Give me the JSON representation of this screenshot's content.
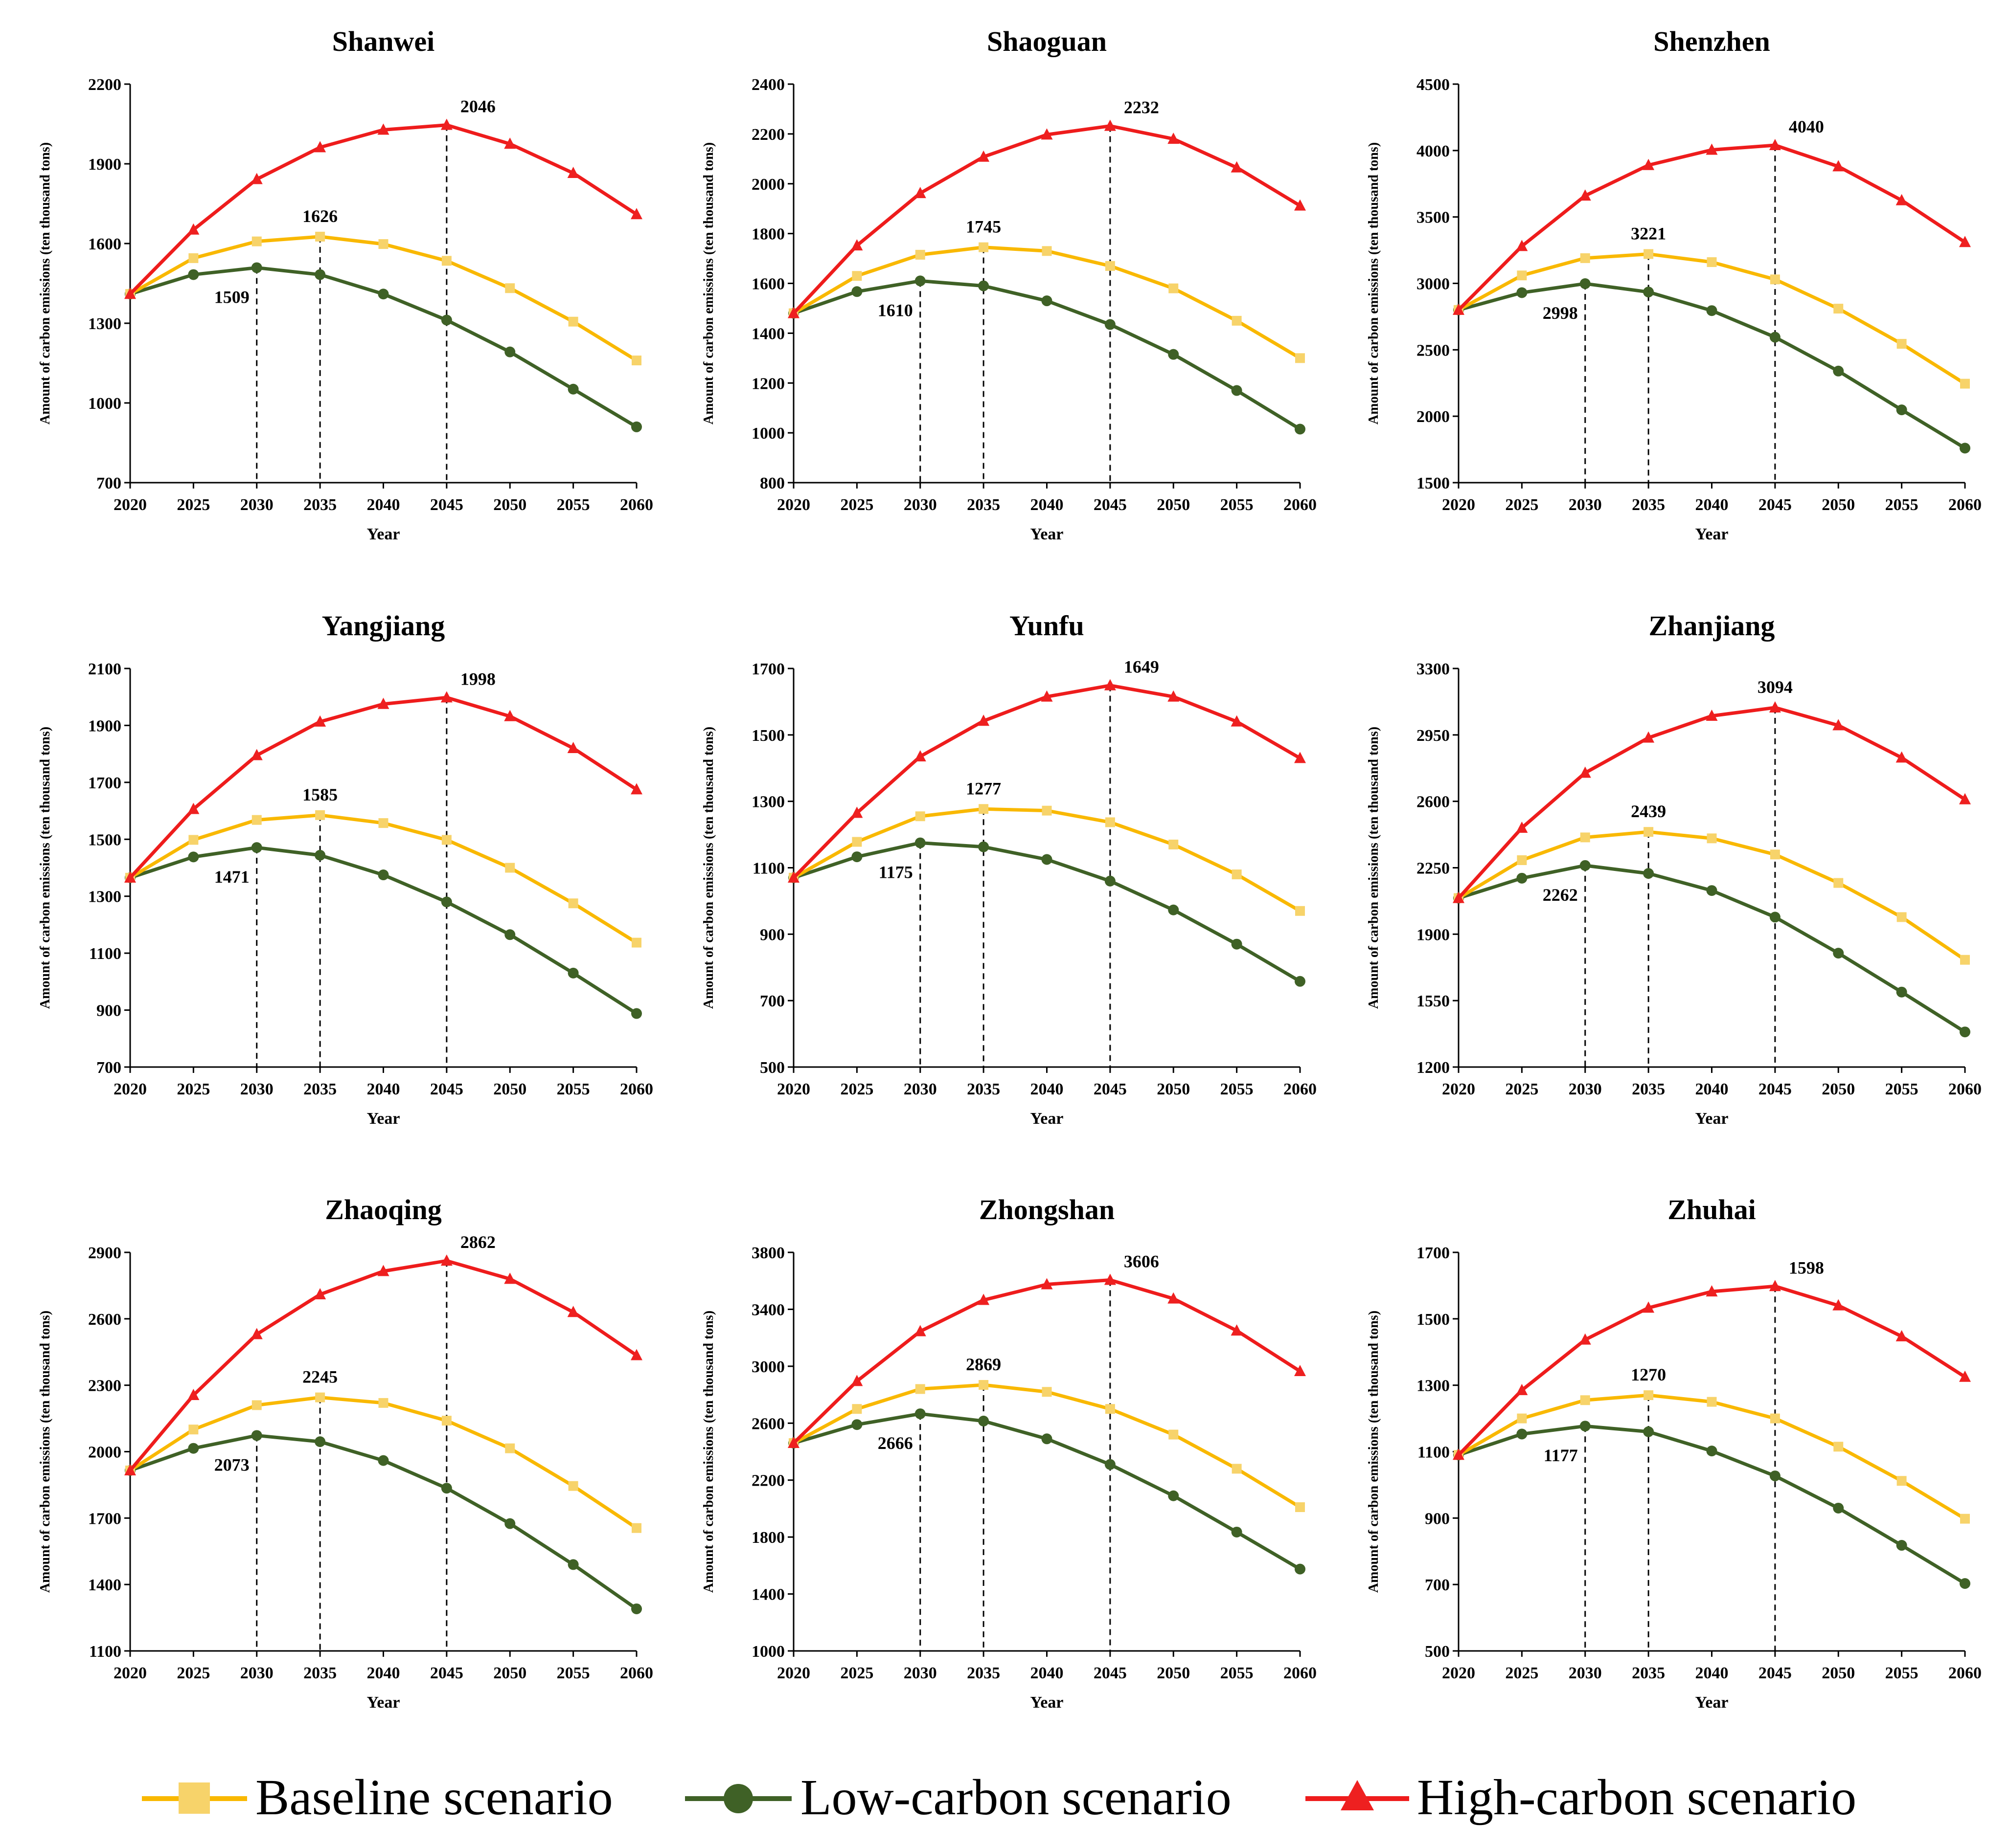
{
  "colors": {
    "baseline": "#f9b800",
    "baseline_marker": "#f7d36a",
    "low": "#3f6126",
    "high": "#ee1c1c",
    "high_marker": "#ee2020"
  },
  "legend": {
    "baseline": "Baseline scenario",
    "low": "Low-carbon scenario",
    "high": "High-carbon scenario"
  },
  "chart_data": [
    {
      "type": "line",
      "title": "Shanwei",
      "xlabel": "Year",
      "ylabel": "Amount of carbon emissions (ten thousand tons)",
      "categories": [
        "2020",
        "2025",
        "2030",
        "2035",
        "2040",
        "2045",
        "2050",
        "2055",
        "2060"
      ],
      "ylim": [
        700,
        2200
      ],
      "yticks": [
        700,
        1000,
        1300,
        1600,
        1900,
        2200
      ],
      "series": [
        {
          "name": "Baseline scenario",
          "key": "baseline",
          "values": [
            1410,
            1545,
            1608,
            1626,
            1598,
            1535,
            1432,
            1306,
            1160
          ]
        },
        {
          "name": "Low-carbon scenario",
          "key": "low",
          "values": [
            1410,
            1483,
            1509,
            1483,
            1410,
            1312,
            1192,
            1052,
            910
          ]
        },
        {
          "name": "High-carbon scenario",
          "key": "high",
          "values": [
            1410,
            1652,
            1842,
            1962,
            2028,
            2046,
            1975,
            1865,
            1710
          ]
        }
      ],
      "annotations": [
        {
          "label": "1509",
          "series": "low",
          "year": "2030",
          "pos": "below-left"
        },
        {
          "label": "1626",
          "series": "baseline",
          "year": "2035",
          "pos": "above"
        },
        {
          "label": "2046",
          "series": "high",
          "year": "2045",
          "pos": "above-right"
        }
      ]
    },
    {
      "type": "line",
      "title": "Shaoguan",
      "xlabel": "Year",
      "ylabel": "Amount of carbon emissions (ten thousand tons)",
      "categories": [
        "2020",
        "2025",
        "2030",
        "2035",
        "2040",
        "2045",
        "2050",
        "2055",
        "2060"
      ],
      "ylim": [
        800,
        2400
      ],
      "yticks": [
        800,
        1000,
        1200,
        1400,
        1600,
        1800,
        2000,
        2200,
        2400
      ],
      "series": [
        {
          "name": "Baseline scenario",
          "key": "baseline",
          "values": [
            1480,
            1630,
            1715,
            1745,
            1730,
            1670,
            1580,
            1450,
            1300
          ]
        },
        {
          "name": "Low-carbon scenario",
          "key": "low",
          "values": [
            1480,
            1567,
            1610,
            1590,
            1530,
            1435,
            1315,
            1170,
            1015
          ]
        },
        {
          "name": "High-carbon scenario",
          "key": "high",
          "values": [
            1480,
            1752,
            1962,
            2108,
            2197,
            2232,
            2180,
            2065,
            1912
          ]
        }
      ],
      "annotations": [
        {
          "label": "1610",
          "series": "low",
          "year": "2030",
          "pos": "below-left"
        },
        {
          "label": "1745",
          "series": "baseline",
          "year": "2035",
          "pos": "above"
        },
        {
          "label": "2232",
          "series": "high",
          "year": "2045",
          "pos": "above-right"
        }
      ]
    },
    {
      "type": "line",
      "title": "Shenzhen",
      "xlabel": "Year",
      "ylabel": "Amount of carbon emissions (ten thousand tons)",
      "categories": [
        "2020",
        "2025",
        "2030",
        "2035",
        "2040",
        "2045",
        "2050",
        "2055",
        "2060"
      ],
      "ylim": [
        1500,
        4500
      ],
      "yticks": [
        1500,
        2000,
        2500,
        3000,
        3500,
        4000,
        4500
      ],
      "series": [
        {
          "name": "Baseline scenario",
          "key": "baseline",
          "values": [
            2800,
            3060,
            3190,
            3221,
            3160,
            3030,
            2810,
            2545,
            2245
          ]
        },
        {
          "name": "Low-carbon scenario",
          "key": "low",
          "values": [
            2800,
            2930,
            2998,
            2935,
            2795,
            2595,
            2340,
            2048,
            1760
          ]
        },
        {
          "name": "High-carbon scenario",
          "key": "high",
          "values": [
            2800,
            3280,
            3660,
            3890,
            4005,
            4040,
            3880,
            3625,
            3310
          ]
        }
      ],
      "annotations": [
        {
          "label": "2998",
          "series": "low",
          "year": "2030",
          "pos": "below-left"
        },
        {
          "label": "3221",
          "series": "baseline",
          "year": "2035",
          "pos": "above"
        },
        {
          "label": "4040",
          "series": "high",
          "year": "2045",
          "pos": "above-right"
        }
      ]
    },
    {
      "type": "line",
      "title": "Yangjiang",
      "xlabel": "Year",
      "ylabel": "Amount of carbon emissions (ten thousand tons)",
      "categories": [
        "2020",
        "2025",
        "2030",
        "2035",
        "2040",
        "2045",
        "2050",
        "2055",
        "2060"
      ],
      "ylim": [
        700,
        2100
      ],
      "yticks": [
        700,
        900,
        1100,
        1300,
        1500,
        1700,
        1900,
        2100
      ],
      "series": [
        {
          "name": "Baseline scenario",
          "key": "baseline",
          "values": [
            1365,
            1498,
            1568,
            1585,
            1557,
            1498,
            1400,
            1275,
            1137
          ]
        },
        {
          "name": "Low-carbon scenario",
          "key": "low",
          "values": [
            1365,
            1438,
            1471,
            1444,
            1375,
            1280,
            1165,
            1030,
            888
          ]
        },
        {
          "name": "High-carbon scenario",
          "key": "high",
          "values": [
            1365,
            1606,
            1795,
            1913,
            1975,
            1998,
            1932,
            1820,
            1675
          ]
        }
      ],
      "annotations": [
        {
          "label": "1471",
          "series": "low",
          "year": "2030",
          "pos": "below-left"
        },
        {
          "label": "1585",
          "series": "baseline",
          "year": "2035",
          "pos": "above"
        },
        {
          "label": "1998",
          "series": "high",
          "year": "2045",
          "pos": "above-right"
        }
      ]
    },
    {
      "type": "line",
      "title": "Yunfu",
      "xlabel": "Year",
      "ylabel": "Amount of carbon emissions (ten thousand tons)",
      "categories": [
        "2020",
        "2025",
        "2030",
        "2035",
        "2040",
        "2045",
        "2050",
        "2055",
        "2060"
      ],
      "ylim": [
        500,
        1700
      ],
      "yticks": [
        500,
        700,
        900,
        1100,
        1300,
        1500,
        1700
      ],
      "series": [
        {
          "name": "Baseline scenario",
          "key": "baseline",
          "values": [
            1070,
            1178,
            1255,
            1277,
            1272,
            1237,
            1170,
            1080,
            970
          ]
        },
        {
          "name": "Low-carbon scenario",
          "key": "low",
          "values": [
            1070,
            1133,
            1175,
            1163,
            1125,
            1060,
            973,
            870,
            758
          ]
        },
        {
          "name": "High-carbon scenario",
          "key": "high",
          "values": [
            1070,
            1265,
            1435,
            1542,
            1615,
            1649,
            1615,
            1540,
            1430
          ]
        }
      ],
      "annotations": [
        {
          "label": "1175",
          "series": "low",
          "year": "2030",
          "pos": "below-left"
        },
        {
          "label": "1277",
          "series": "baseline",
          "year": "2035",
          "pos": "above"
        },
        {
          "label": "1649",
          "series": "high",
          "year": "2045",
          "pos": "above-right"
        }
      ]
    },
    {
      "type": "line",
      "title": "Zhanjiang",
      "xlabel": "Year",
      "ylabel": "Amount of carbon emissions (ten thousand tons)",
      "categories": [
        "2020",
        "2025",
        "2030",
        "2035",
        "2040",
        "2045",
        "2050",
        "2055",
        "2060"
      ],
      "ylim": [
        1200,
        3300
      ],
      "yticks": [
        1200,
        1550,
        1900,
        2250,
        2600,
        2950,
        3300
      ],
      "series": [
        {
          "name": "Baseline scenario",
          "key": "baseline",
          "values": [
            2090,
            2290,
            2410,
            2439,
            2405,
            2320,
            2170,
            1990,
            1765
          ]
        },
        {
          "name": "Low-carbon scenario",
          "key": "low",
          "values": [
            2090,
            2195,
            2262,
            2220,
            2130,
            1990,
            1800,
            1595,
            1385
          ]
        },
        {
          "name": "High-carbon scenario",
          "key": "high",
          "values": [
            2090,
            2460,
            2750,
            2935,
            3050,
            3094,
            3000,
            2830,
            2610
          ]
        }
      ],
      "annotations": [
        {
          "label": "2262",
          "series": "low",
          "year": "2030",
          "pos": "below-left"
        },
        {
          "label": "2439",
          "series": "baseline",
          "year": "2035",
          "pos": "above"
        },
        {
          "label": "3094",
          "series": "high",
          "year": "2045",
          "pos": "above"
        }
      ]
    },
    {
      "type": "line",
      "title": "Zhaoqing",
      "xlabel": "Year",
      "ylabel": "Amount of carbon emissions (ten thousand tons)",
      "categories": [
        "2020",
        "2025",
        "2030",
        "2035",
        "2040",
        "2045",
        "2050",
        "2055",
        "2060"
      ],
      "ylim": [
        1100,
        2900
      ],
      "yticks": [
        1100,
        1400,
        1700,
        2000,
        2300,
        2600,
        2900
      ],
      "series": [
        {
          "name": "Baseline scenario",
          "key": "baseline",
          "values": [
            1915,
            2100,
            2210,
            2245,
            2220,
            2140,
            2015,
            1845,
            1655
          ]
        },
        {
          "name": "Low-carbon scenario",
          "key": "low",
          "values": [
            1915,
            2015,
            2073,
            2045,
            1960,
            1835,
            1675,
            1490,
            1290
          ]
        },
        {
          "name": "High-carbon scenario",
          "key": "high",
          "values": [
            1915,
            2255,
            2530,
            2710,
            2815,
            2862,
            2780,
            2630,
            2435
          ]
        }
      ],
      "annotations": [
        {
          "label": "2073",
          "series": "low",
          "year": "2030",
          "pos": "below-left"
        },
        {
          "label": "2245",
          "series": "baseline",
          "year": "2035",
          "pos": "above"
        },
        {
          "label": "2862",
          "series": "high",
          "year": "2045",
          "pos": "above-right"
        }
      ]
    },
    {
      "type": "line",
      "title": "Zhongshan",
      "xlabel": "Year",
      "ylabel": "Amount of carbon emissions (ten thousand tons)",
      "categories": [
        "2020",
        "2025",
        "2030",
        "2035",
        "2040",
        "2045",
        "2050",
        "2055",
        "2060"
      ],
      "ylim": [
        1000,
        3800
      ],
      "yticks": [
        1000,
        1400,
        1800,
        2200,
        2600,
        3000,
        3400,
        3800
      ],
      "series": [
        {
          "name": "Baseline scenario",
          "key": "baseline",
          "values": [
            2460,
            2700,
            2840,
            2869,
            2820,
            2700,
            2520,
            2280,
            2010
          ]
        },
        {
          "name": "Low-carbon scenario",
          "key": "low",
          "values": [
            2460,
            2590,
            2666,
            2615,
            2490,
            2310,
            2090,
            1835,
            1575
          ]
        },
        {
          "name": "High-carbon scenario",
          "key": "high",
          "values": [
            2460,
            2895,
            3245,
            3465,
            3575,
            3606,
            3475,
            3250,
            2965
          ]
        }
      ],
      "annotations": [
        {
          "label": "2666",
          "series": "low",
          "year": "2030",
          "pos": "below-left"
        },
        {
          "label": "2869",
          "series": "baseline",
          "year": "2035",
          "pos": "above"
        },
        {
          "label": "3606",
          "series": "high",
          "year": "2045",
          "pos": "above-right"
        }
      ]
    },
    {
      "type": "line",
      "title": "Zhuhai",
      "xlabel": "Year",
      "ylabel": "Amount of carbon emissions (ten thousand tons)",
      "categories": [
        "2020",
        "2025",
        "2030",
        "2035",
        "2040",
        "2045",
        "2050",
        "2055",
        "2060"
      ],
      "ylim": [
        500,
        1700
      ],
      "yticks": [
        500,
        700,
        900,
        1100,
        1300,
        1500,
        1700
      ],
      "series": [
        {
          "name": "Baseline scenario",
          "key": "baseline",
          "values": [
            1090,
            1200,
            1255,
            1270,
            1250,
            1200,
            1115,
            1012,
            898
          ]
        },
        {
          "name": "Low-carbon scenario",
          "key": "low",
          "values": [
            1090,
            1153,
            1177,
            1160,
            1102,
            1027,
            930,
            818,
            703
          ]
        },
        {
          "name": "High-carbon scenario",
          "key": "high",
          "values": [
            1090,
            1285,
            1437,
            1533,
            1582,
            1598,
            1540,
            1447,
            1325
          ]
        }
      ],
      "annotations": [
        {
          "label": "1177",
          "series": "low",
          "year": "2030",
          "pos": "below-left"
        },
        {
          "label": "1270",
          "series": "baseline",
          "year": "2035",
          "pos": "above"
        },
        {
          "label": "1598",
          "series": "high",
          "year": "2045",
          "pos": "above-right"
        }
      ]
    }
  ]
}
